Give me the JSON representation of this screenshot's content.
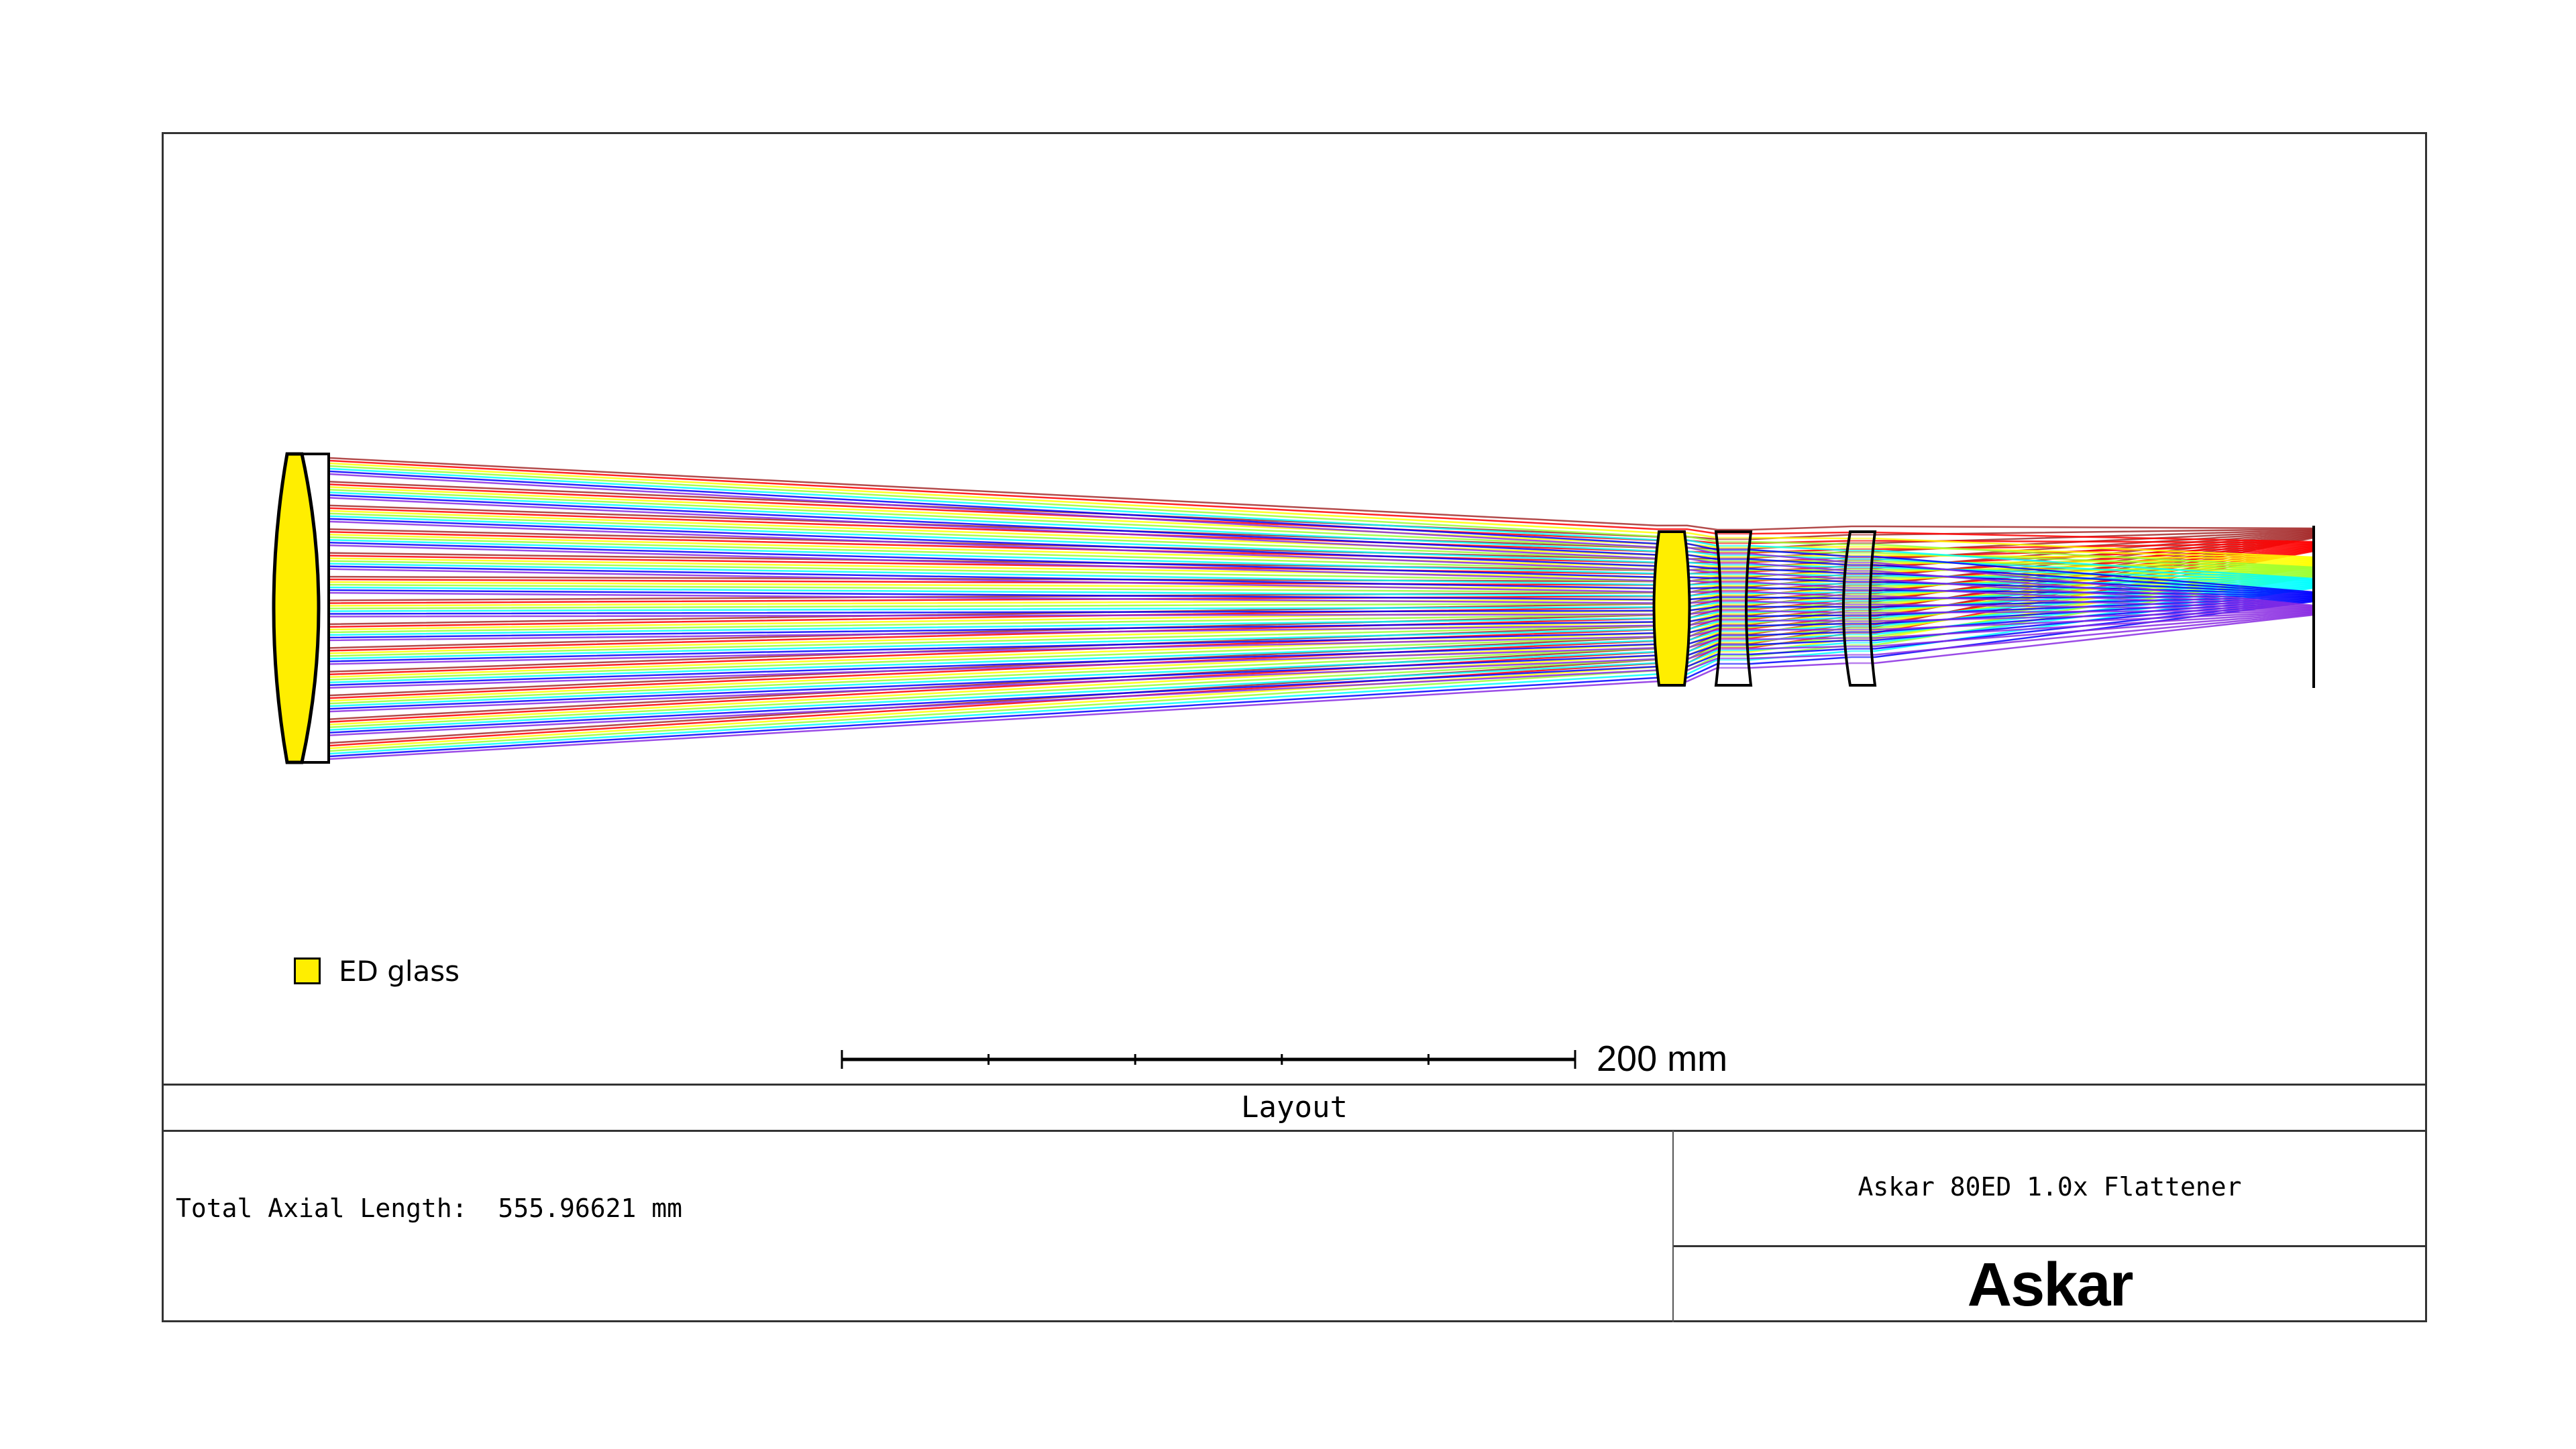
{
  "legend": {
    "label": "ED glass",
    "swatch_color": "#ffee00"
  },
  "scale_bar": {
    "label": "200 mm",
    "value_mm": 200,
    "divisions": 5
  },
  "title_block": {
    "title": "Layout",
    "total_axial_length": "Total Axial Length:  555.96621 mm",
    "lens_name": "Askar 80ED 1.0x Flattener",
    "brand": "Askar"
  },
  "diagram": {
    "type": "optical-layout",
    "ray_colors": [
      "#a52a2a",
      "#ff0000",
      "#ffff00",
      "#99ff33",
      "#00ffff",
      "#0000ff",
      "#8a2be2"
    ],
    "ed_glass_color": "#ffee00",
    "elements": [
      "objective-ed-lens",
      "objective-meniscus-lens",
      "flattener-ed-lens",
      "flattener-negative-lens",
      "flattener-meniscus-lens",
      "image-plane"
    ]
  }
}
